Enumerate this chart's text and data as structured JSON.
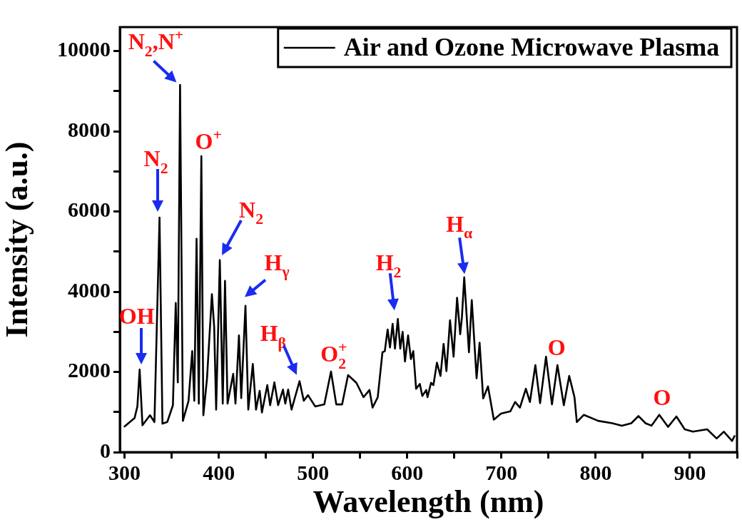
{
  "chart_data": {
    "type": "line",
    "xlabel": "Wavelength (nm)",
    "ylabel": "Intensity (a.u.)",
    "legend": "top right",
    "marker": "none",
    "line_style": "solid",
    "grid": false,
    "xlim": [
      295,
      950
    ],
    "ylim": [
      0,
      10600
    ],
    "xticks": [
      300,
      {
        "value": 350,
        "label": null
      },
      400,
      {
        "value": 450,
        "label": null
      },
      500,
      {
        "value": 550,
        "label": null
      },
      600,
      {
        "value": 650,
        "label": null
      },
      700,
      {
        "value": 750,
        "label": null
      },
      800,
      {
        "value": 850,
        "label": null
      },
      900,
      {
        "value": 950,
        "label": null
      }
    ],
    "yticks": [
      0,
      {
        "value": 1000,
        "label": null
      },
      2000,
      {
        "value": 3000,
        "label": null
      },
      4000,
      {
        "value": 5000,
        "label": null
      },
      6000,
      {
        "value": 7000,
        "label": null
      },
      8000,
      {
        "value": 9000,
        "label": null
      },
      10000
    ],
    "series": [
      {
        "name": "Air and Ozone Microwave Plasma",
        "color": "#000000",
        "x": [
          300,
          310.6,
          313.6,
          316,
          319,
          327,
          331.7,
          337.1,
          340.2,
          345.3,
          351.3,
          354.3,
          356.5,
          358.9,
          361.9,
          367.9,
          371.8,
          374,
          376.4,
          378.8,
          381.5,
          383.6,
          387.5,
          392.7,
          395.1,
          397.2,
          401.1,
          404.2,
          406.6,
          409.3,
          415.3,
          417.7,
          421.4,
          423.8,
          428.3,
          431.3,
          436.1,
          439.5,
          443.4,
          445.8,
          451.5,
          454.5,
          459,
          463,
          468.1,
          470.6,
          473.6,
          477.2,
          485.7,
          490.2,
          494.7,
          502.3,
          512,
          519.1,
          524.7,
          530.9,
          537.2,
          546,
          553.6,
          559.9,
          563.2,
          568.7,
          573.7,
          576.2,
          579.2,
          581.7,
          584.5,
          587,
          590,
          592.6,
          595.1,
          597.6,
          600.9,
          603.9,
          606.4,
          609.4,
          613.4,
          616,
          620.2,
          621.5,
          625.3,
          627.8,
          631.5,
          635.3,
          638.6,
          641.6,
          645.4,
          649.2,
          652.9,
          656.2,
          658,
          660.5,
          665.5,
          668.5,
          673.6,
          676.8,
          680.6,
          685.7,
          691.9,
          699.5,
          709.5,
          714.5,
          719.6,
          725.9,
          730.2,
          736,
          741,
          747.3,
          753.6,
          759.4,
          766.2,
          771.9,
          777.5,
          780,
          787.5,
          802.6,
          817.7,
          827.8,
          837.8,
          845.4,
          852.9,
          859.2,
          867.5,
          876.8,
          885.7,
          894.5,
          903.2,
          918.3,
          928.4,
          936,
          944.8,
          947.3
        ],
        "values": [
          640,
          850,
          1140,
          2060,
          670,
          920,
          750,
          5850,
          710,
          750,
          1170,
          3720,
          1740,
          9160,
          780,
          1280,
          2520,
          1280,
          5320,
          1210,
          7380,
          920,
          1840,
          3940,
          3120,
          1060,
          4790,
          1210,
          4270,
          1210,
          1950,
          1210,
          2910,
          1350,
          3650,
          1060,
          2200,
          1060,
          1530,
          990,
          1670,
          1170,
          1740,
          1170,
          1560,
          1210,
          1560,
          1060,
          1770,
          1280,
          1420,
          1140,
          1190,
          2010,
          1190,
          1190,
          1920,
          1730,
          1370,
          1550,
          1110,
          1370,
          2490,
          2520,
          3060,
          2610,
          3200,
          2580,
          3320,
          2580,
          3000,
          2260,
          2910,
          2320,
          2520,
          1580,
          1700,
          1400,
          1550,
          1370,
          1730,
          1670,
          2230,
          1900,
          2700,
          2020,
          3290,
          2380,
          3850,
          2940,
          3350,
          4360,
          2490,
          3790,
          1840,
          2730,
          1340,
          1640,
          810,
          960,
          1020,
          1250,
          1110,
          1580,
          1250,
          2170,
          1220,
          2380,
          1190,
          2170,
          1170,
          1900,
          1370,
          750,
          930,
          780,
          720,
          660,
          720,
          900,
          720,
          660,
          930,
          630,
          890,
          570,
          510,
          570,
          340,
          510,
          280,
          400
        ]
      }
    ],
    "annotations": [
      {
        "text": "N$_{2}$,N$^{+}$",
        "x": 358.9,
        "y": 9160
      },
      {
        "text": "N$_{2}$",
        "x": 337.1,
        "y": 5850
      },
      {
        "text": "O$^{+}$",
        "x": 381.5,
        "y": 7380
      },
      {
        "text": "N$_{2}$",
        "x": 401.1,
        "y": 4790
      },
      {
        "text": "H$_{γ}$",
        "x": 428.3,
        "y": 3650
      },
      {
        "text": "H$_{β}$",
        "x": 485.7,
        "y": 1770
      },
      {
        "text": "OH",
        "x": 316,
        "y": 2060
      },
      {
        "text": "O$_{2}$$^{+}$",
        "x": 519.1,
        "y": 2010
      },
      {
        "text": "H$_{2}$",
        "x": 590,
        "y": 3320
      },
      {
        "text": "H$_{α}$",
        "x": 660.5,
        "y": 4360
      },
      {
        "text": "O",
        "x": 747.3,
        "y": 2380
      },
      {
        "text": "O",
        "x": 867.5,
        "y": 930
      }
    ]
  }
}
